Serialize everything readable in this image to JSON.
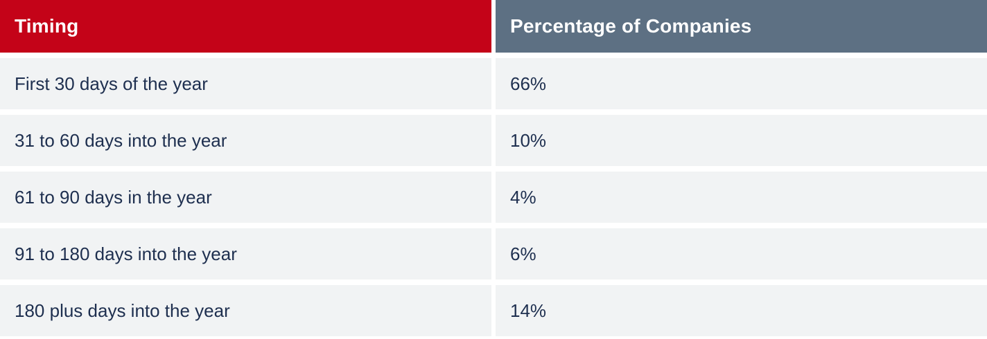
{
  "table": {
    "columns": [
      {
        "label": "Timing"
      },
      {
        "label": "Percentage of Companies"
      }
    ],
    "rows": [
      {
        "timing": "First 30 days of the year",
        "percentage": "66%"
      },
      {
        "timing": "31 to 60 days into the year",
        "percentage": "10%"
      },
      {
        "timing": "61 to 90 days in the year",
        "percentage": "4%"
      },
      {
        "timing": "91 to 180 days into the year",
        "percentage": "6%"
      },
      {
        "timing": "180 plus days into the year",
        "percentage": "14%"
      }
    ]
  },
  "colors": {
    "timing_header_bg": "#c40318",
    "percentage_header_bg": "#5d7083",
    "row_bg": "#f1f3f4",
    "row_text": "#1e2f4f",
    "header_text": "#ffffff",
    "gap": "#ffffff"
  },
  "chart_data": {
    "type": "table",
    "title": "",
    "columns": [
      "Timing",
      "Percentage of Companies"
    ],
    "categories": [
      "First 30 days of the year",
      "31 to 60 days into the year",
      "61 to 90 days in the year",
      "91 to 180 days into the year",
      "180 plus days into the year"
    ],
    "values": [
      66,
      10,
      4,
      6,
      14
    ],
    "value_unit": "%",
    "layout": "two-column table, header row colored (red / slate), zebra-free light gray rows separated by white gaps"
  }
}
